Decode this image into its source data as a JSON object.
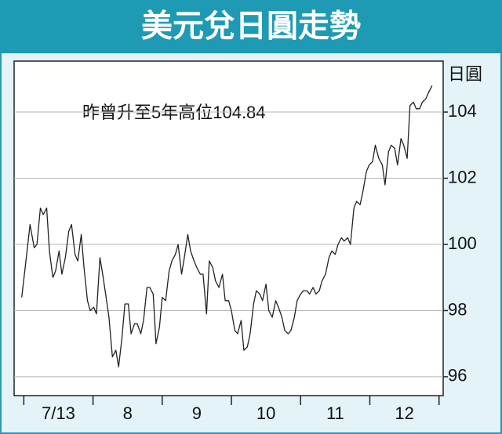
{
  "chart_data": {
    "type": "line",
    "title": "美元兌日圓走勢",
    "annotation": "昨曾升至5年高位104.84",
    "y_label": "日圓",
    "categories": [
      "7/13",
      "8",
      "9",
      "10",
      "11",
      "12"
    ],
    "xlim": [
      -0.14,
      6.06
    ],
    "xticks": [
      0,
      1,
      2,
      3,
      4,
      5,
      6
    ],
    "ylim": [
      95.43,
      105.54
    ],
    "yticks": [
      96,
      98,
      100,
      102,
      104
    ],
    "grid": true,
    "series": [
      {
        "color": "#222222",
        "x": [
          -0.03,
          0.02,
          0.09,
          0.15,
          0.19,
          0.24,
          0.28,
          0.33,
          0.37,
          0.42,
          0.46,
          0.51,
          0.55,
          0.6,
          0.65,
          0.69,
          0.74,
          0.78,
          0.83,
          0.87,
          0.92,
          0.96,
          1.01,
          1.05,
          1.1,
          1.14,
          1.19,
          1.23,
          1.28,
          1.33,
          1.37,
          1.42,
          1.46,
          1.51,
          1.55,
          1.6,
          1.64,
          1.69,
          1.73,
          1.78,
          1.82,
          1.87,
          1.91,
          1.96,
          2.0,
          2.05,
          2.1,
          2.14,
          2.19,
          2.23,
          2.28,
          2.32,
          2.37,
          2.41,
          2.46,
          2.5,
          2.55,
          2.59,
          2.64,
          2.68,
          2.73,
          2.77,
          2.82,
          2.87,
          2.91,
          2.96,
          3.0,
          3.05,
          3.09,
          3.14,
          3.18,
          3.23,
          3.27,
          3.32,
          3.36,
          3.41,
          3.45,
          3.5,
          3.54,
          3.59,
          3.64,
          3.68,
          3.73,
          3.77,
          3.82,
          3.86,
          3.91,
          3.95,
          4.0,
          4.04,
          4.09,
          4.13,
          4.18,
          4.22,
          4.27,
          4.31,
          4.36,
          4.41,
          4.45,
          4.5,
          4.54,
          4.59,
          4.63,
          4.68,
          4.72,
          4.77,
          4.81,
          4.86,
          4.9,
          4.95,
          4.99,
          5.04,
          5.08,
          5.13,
          5.18,
          5.22,
          5.27,
          5.31,
          5.36,
          5.4,
          5.45,
          5.49,
          5.54,
          5.58,
          5.63,
          5.67,
          5.72,
          5.76,
          5.81,
          5.85,
          5.9
        ],
        "values": [
          98.4,
          99.3,
          100.6,
          99.9,
          100.0,
          101.1,
          100.9,
          101.1,
          99.8,
          99.0,
          99.2,
          99.8,
          99.1,
          99.6,
          100.4,
          100.6,
          99.7,
          99.5,
          100.3,
          99.3,
          98.3,
          98.0,
          98.1,
          97.9,
          99.6,
          99.1,
          98.4,
          97.8,
          96.6,
          96.8,
          96.3,
          97.2,
          98.2,
          98.2,
          97.3,
          97.6,
          97.6,
          97.3,
          97.7,
          98.7,
          98.7,
          98.5,
          97.0,
          97.5,
          98.4,
          98.3,
          99.2,
          99.5,
          99.7,
          100.0,
          99.1,
          99.6,
          100.3,
          99.8,
          99.5,
          99.3,
          99.1,
          99.1,
          97.9,
          99.5,
          99.3,
          98.9,
          98.7,
          99.1,
          98.3,
          98.3,
          98.0,
          97.4,
          97.3,
          97.7,
          96.8,
          96.9,
          97.3,
          98.2,
          98.6,
          98.5,
          98.3,
          98.8,
          98.0,
          97.8,
          98.3,
          98.1,
          97.8,
          97.4,
          97.3,
          97.4,
          97.8,
          98.3,
          98.5,
          98.6,
          98.6,
          98.5,
          98.7,
          98.5,
          98.6,
          98.9,
          99.1,
          99.6,
          99.8,
          99.7,
          100.0,
          100.2,
          100.1,
          100.2,
          100.0,
          101.1,
          101.3,
          101.2,
          101.6,
          102.2,
          102.4,
          102.5,
          103.0,
          102.6,
          102.4,
          101.8,
          102.8,
          103.0,
          102.9,
          102.4,
          103.2,
          103.0,
          102.6,
          104.2,
          104.3,
          104.1,
          104.1,
          104.3,
          104.4,
          104.6,
          104.8
        ]
      }
    ]
  }
}
